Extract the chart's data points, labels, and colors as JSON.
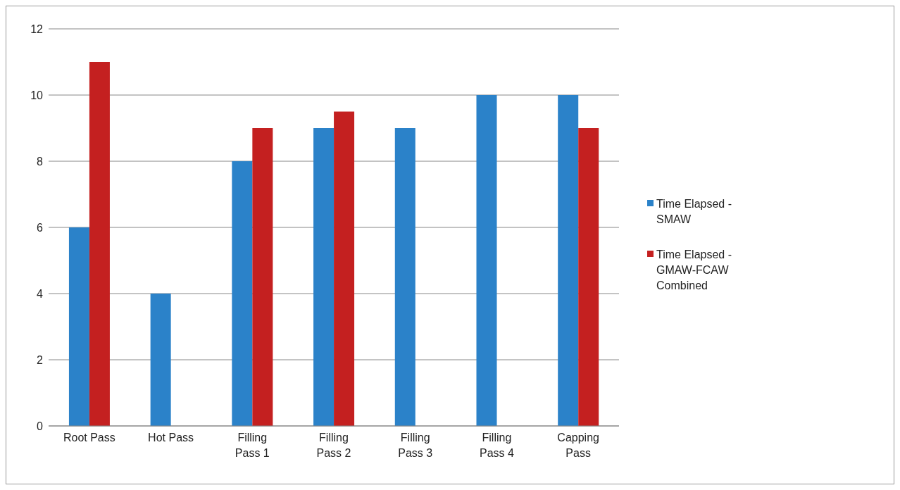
{
  "chart_data": {
    "type": "bar",
    "categories": [
      "Root Pass",
      "Hot Pass",
      "Filling Pass 1",
      "Filling Pass 2",
      "Filling Pass 3",
      "Filling Pass 4",
      "Capping Pass"
    ],
    "series": [
      {
        "name": "Time Elapsed - SMAW",
        "color": "#2b82c9",
        "values": [
          6,
          4,
          8,
          9,
          9,
          10,
          10
        ]
      },
      {
        "name": "Time Elapsed - GMAW-FCAW Combined",
        "color": "#c42020",
        "values": [
          11,
          null,
          9,
          9.5,
          null,
          null,
          9
        ]
      }
    ],
    "ylim": [
      0,
      12
    ],
    "yticks": [
      0,
      2,
      4,
      6,
      8,
      10,
      12
    ],
    "grid": "y",
    "legend": "right"
  }
}
